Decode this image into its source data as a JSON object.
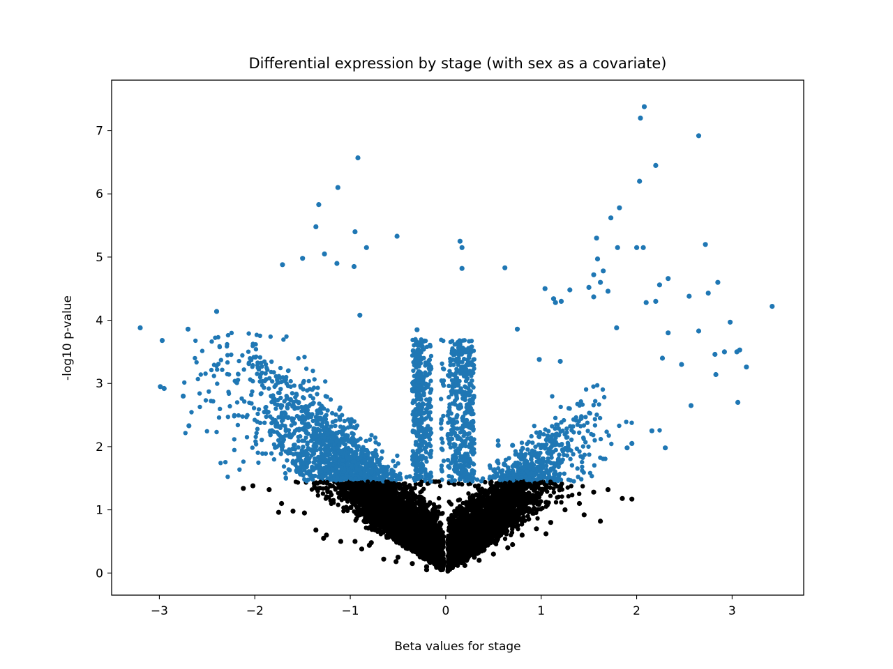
{
  "chart_data": {
    "type": "scatter",
    "title": "Differential expression by stage (with sex as a covariate)",
    "xlabel": "Beta values for stage",
    "ylabel": "-log10 p-value",
    "xlim": [
      -3.5,
      3.75
    ],
    "ylim": [
      -0.35,
      7.8
    ],
    "xticks": [
      -3,
      -2,
      -1,
      0,
      1,
      2,
      3
    ],
    "xtick_labels": [
      "−3",
      "−2",
      "−1",
      "0",
      "1",
      "2",
      "3"
    ],
    "yticks": [
      0,
      1,
      2,
      3,
      4,
      5,
      6,
      7
    ],
    "ytick_labels": [
      "0",
      "1",
      "2",
      "3",
      "4",
      "5",
      "6",
      "7"
    ],
    "grid": false,
    "significance_threshold": 1.45,
    "colors": {
      "significant": "#1f77b4",
      "not_significant": "#000000"
    },
    "series": [
      {
        "color": "#1f77b4",
        "x": [
          2.08,
          2.04,
          2.65,
          -0.92,
          2.2,
          2.03,
          -1.13,
          1.82,
          -1.36,
          1.73,
          -1.33,
          -0.95,
          1.58,
          0.15,
          2.72,
          0.17,
          1.8,
          2.0,
          2.07,
          -0.83,
          -1.27,
          1.59,
          -1.14,
          -1.5,
          -0.51,
          1.55,
          0.17,
          0.62,
          -1.71,
          -0.96,
          1.65,
          1.62,
          1.5,
          2.33,
          2.85,
          1.04,
          1.3,
          2.24,
          1.21,
          1.7,
          2.75,
          -0.9,
          1.55,
          1.13,
          1.15,
          3.42,
          2.98,
          -2.4,
          2.55,
          2.2,
          2.1,
          -3.2,
          2.65,
          3.08,
          -2.7,
          0.75,
          -2.97,
          2.33,
          -0.3,
          1.79,
          2.27,
          0.98,
          2.82,
          1.2,
          3.05,
          2.92,
          3.15,
          2.83,
          2.47,
          -2.99,
          -2.95,
          -2.75,
          2.57,
          3.06,
          1.95,
          2.3,
          1.9,
          2.16,
          -2.69,
          0.7,
          0.55
        ],
        "y": [
          7.38,
          7.2,
          6.92,
          6.57,
          6.45,
          6.2,
          6.1,
          5.78,
          5.48,
          5.62,
          5.83,
          5.4,
          5.3,
          5.25,
          5.2,
          5.15,
          5.15,
          5.15,
          5.15,
          5.15,
          5.05,
          4.97,
          4.9,
          4.98,
          5.33,
          4.72,
          4.82,
          4.83,
          4.88,
          4.85,
          4.78,
          4.6,
          4.52,
          4.66,
          4.6,
          4.5,
          4.48,
          4.56,
          4.3,
          4.46,
          4.43,
          4.08,
          4.37,
          4.34,
          4.28,
          4.22,
          3.97,
          4.14,
          4.38,
          4.3,
          4.28,
          3.88,
          3.83,
          3.53,
          3.86,
          3.86,
          3.68,
          3.8,
          3.85,
          3.88,
          3.4,
          3.38,
          3.46,
          3.35,
          3.5,
          3.5,
          3.26,
          3.14,
          3.3,
          2.95,
          2.92,
          2.8,
          2.65,
          2.7,
          2.05,
          1.98,
          1.98,
          2.25,
          2.33,
          2.02,
          2.02
        ]
      },
      {
        "color": "#000000",
        "x": [
          -2.12,
          -2.02,
          -1.85,
          -1.72,
          -1.6,
          -1.48,
          -1.36,
          -1.25,
          -1.1,
          -0.95,
          -0.8,
          -0.65,
          -0.5,
          -0.35,
          -0.2,
          -0.05,
          0.05,
          0.2,
          0.35,
          0.5,
          0.65,
          0.8,
          0.95,
          1.1,
          1.25,
          1.4,
          1.55,
          1.7,
          1.85,
          1.95,
          -1.75,
          -1.28,
          -0.78,
          -0.52,
          -0.2,
          0.3,
          0.7,
          1.05,
          1.45,
          1.62,
          -0.88,
          0.12,
          -0.12
        ],
        "y": [
          1.34,
          1.38,
          1.32,
          1.1,
          0.98,
          0.95,
          0.68,
          0.6,
          0.5,
          0.5,
          0.44,
          0.22,
          0.25,
          0.15,
          0.1,
          0.05,
          0.08,
          0.12,
          0.2,
          0.3,
          0.4,
          0.6,
          0.7,
          0.8,
          1.0,
          1.1,
          1.28,
          1.32,
          1.18,
          1.17,
          0.96,
          0.55,
          0.48,
          0.18,
          0.05,
          0.25,
          0.45,
          0.62,
          0.92,
          0.82,
          0.38,
          0.2,
          0.15
        ]
      }
    ]
  }
}
